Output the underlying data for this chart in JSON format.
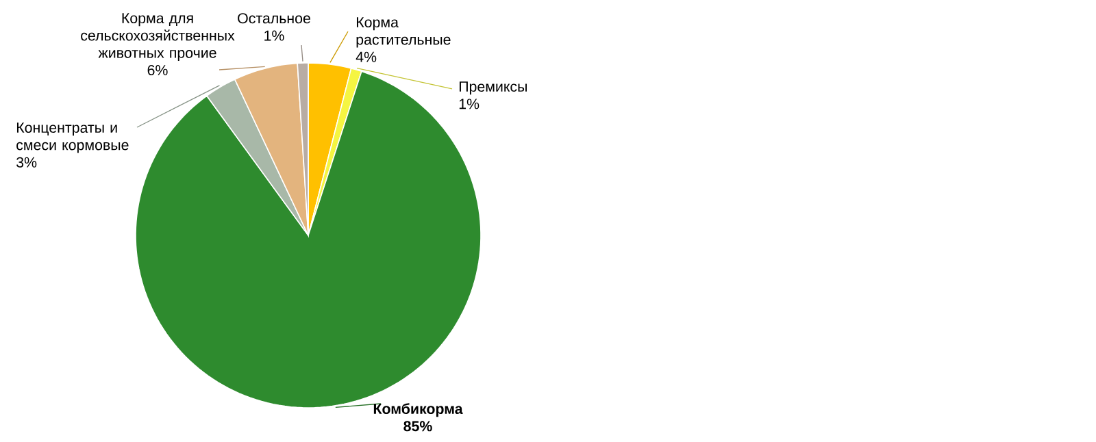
{
  "chart_data": {
    "type": "pie",
    "categories": [
      "Корма растительные",
      "Премиксы",
      "Комбикорма",
      "Концентраты и смеси кормовые",
      "Корма для сельскохозяйственных животных прочие",
      "Остальное"
    ],
    "values": [
      4,
      1,
      85,
      3,
      6,
      1
    ],
    "value_labels": [
      "4%",
      "1%",
      "85%",
      "3%",
      "6%",
      "1%"
    ],
    "colors": [
      "#ffc000",
      "#f5f542",
      "#2e8b2e",
      "#a8b8a8",
      "#e3b47e",
      "#b8aca4"
    ]
  }
}
